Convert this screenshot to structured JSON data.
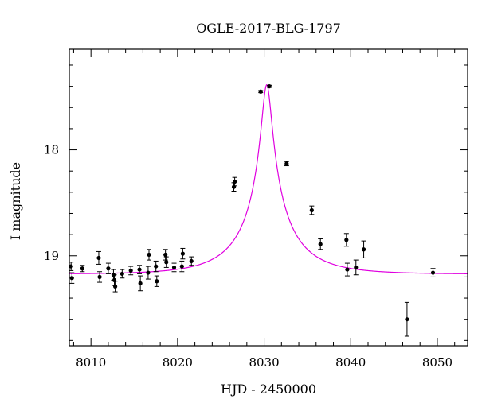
{
  "chart_data": {
    "type": "scatter",
    "title": "OGLE-2017-BLG-1797",
    "xlabel": "HJD - 2450000",
    "ylabel": "I magnitude",
    "xlim": [
      8007.5,
      8053.5
    ],
    "ylim": [
      19.85,
      17.05
    ],
    "y_inverted": true,
    "grid": false,
    "x_ticks": [
      8010,
      8020,
      8030,
      8040,
      8050
    ],
    "x_tick_labels": [
      "8010",
      "8020",
      "8030",
      "8040",
      "8050"
    ],
    "y_ticks": [
      18,
      19
    ],
    "y_tick_labels": [
      "18",
      "19"
    ],
    "x_minor_step": 2,
    "y_minor_step": 0.2,
    "colors": {
      "points": "#000000",
      "model": "#e000e0",
      "frame": "#000000"
    },
    "series": [
      {
        "type": "errorbar",
        "x": [
          8007.7,
          8007.8,
          8009.0,
          8010.9,
          8011.0,
          8012.0,
          8012.6,
          8012.7,
          8012.8,
          8013.6,
          8014.6,
          8015.6,
          8015.7,
          8016.6,
          8016.7,
          8017.5,
          8017.6,
          8018.6,
          8018.7,
          8019.6,
          8020.5,
          8020.6,
          8021.6,
          8026.5,
          8026.6,
          8029.6,
          8030.6,
          8032.6,
          8035.5,
          8036.5,
          8039.5,
          8039.6,
          8040.6,
          8041.5,
          8046.5,
          8049.5
        ],
        "y": [
          19.1,
          19.21,
          19.12,
          19.02,
          19.2,
          19.12,
          19.18,
          19.23,
          19.29,
          19.17,
          19.14,
          19.13,
          19.26,
          19.16,
          18.99,
          19.1,
          19.24,
          18.99,
          19.06,
          19.11,
          19.1,
          18.98,
          19.05,
          18.35,
          18.3,
          17.45,
          17.4,
          18.13,
          18.57,
          18.89,
          18.85,
          19.13,
          19.11,
          18.94,
          19.6,
          19.16
        ],
        "err": [
          0.04,
          0.05,
          0.03,
          0.06,
          0.05,
          0.05,
          0.05,
          0.05,
          0.05,
          0.04,
          0.04,
          0.04,
          0.07,
          0.06,
          0.05,
          0.05,
          0.05,
          0.05,
          0.05,
          0.04,
          0.05,
          0.05,
          0.04,
          0.04,
          0.04,
          0.01,
          0.01,
          0.02,
          0.04,
          0.05,
          0.06,
          0.06,
          0.07,
          0.08,
          0.16,
          0.04
        ]
      },
      {
        "type": "line",
        "model": {
          "t0": 8030.3,
          "tE": 6.5,
          "u0": 0.0833,
          "fs": 0.38,
          "fb": 0.62,
          "I_base": 19.1735
        }
      }
    ]
  }
}
